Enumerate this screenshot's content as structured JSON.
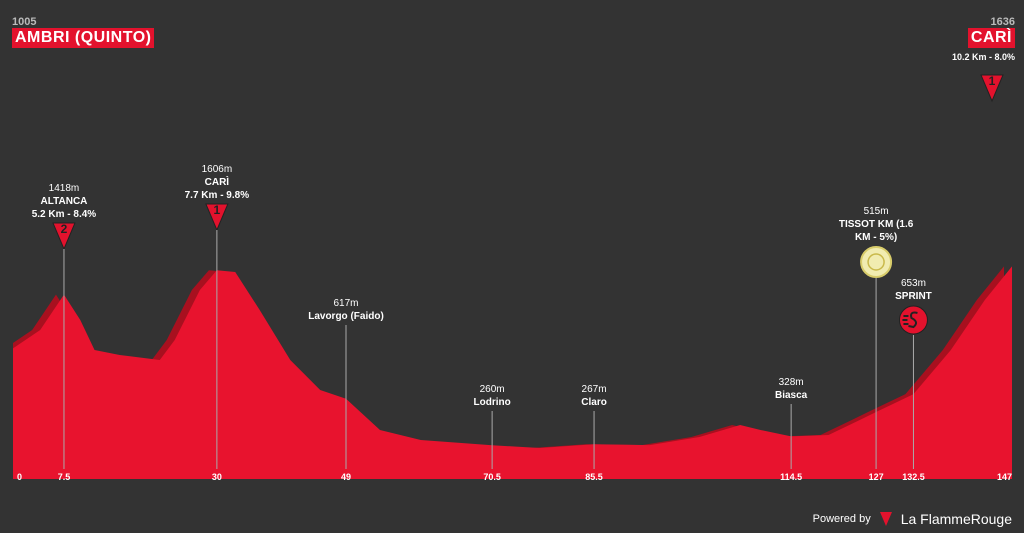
{
  "chart_data": {
    "type": "area",
    "start": {
      "elevation": 1005,
      "name": "AMBRI (QUINTO)"
    },
    "finish": {
      "elevation": 1636,
      "name": "CARÌ",
      "detail": "10.2 Km - 8.0%",
      "category": "1"
    },
    "x": [
      0,
      4,
      7.5,
      9.9,
      12,
      15.7,
      21.6,
      23.8,
      27.5,
      30,
      32.7,
      36.3,
      40.8,
      45.2,
      49,
      54,
      60,
      70.5,
      77.5,
      85.5,
      93.7,
      101,
      107,
      110,
      114.5,
      120,
      124.6,
      127,
      132.5,
      138,
      143,
      147
    ],
    "values": [
      1005,
      1146,
      1418,
      1223,
      992,
      954,
      915,
      1069,
      1454,
      1606,
      1592,
      1300,
      915,
      685,
      617,
      377,
      300,
      260,
      238,
      267,
      261,
      323,
      415,
      377,
      328,
      338,
      454,
      515,
      653,
      992,
      1377,
      1636
    ],
    "xlim": [
      0,
      147
    ],
    "xticks": [
      0,
      7.5,
      30,
      49,
      70.5,
      85.5,
      114.5,
      127,
      132.5,
      147
    ],
    "ylim": [
      0,
      1800
    ],
    "color": "#e8132e",
    "shade_color": "#a8101f",
    "annotations": [
      {
        "x": 7.5,
        "value": 1418,
        "label": "1418m",
        "name": "ALTANCA",
        "detail": "5.2 Km - 8.4%",
        "category": "2"
      },
      {
        "x": 30,
        "value": 1606,
        "label": "1606m",
        "name": "CARÌ",
        "detail": "7.7 Km - 9.8%",
        "category": "1"
      },
      {
        "x": 49,
        "value": 617,
        "label": "617m",
        "name": "Lavorgo (Faido)"
      },
      {
        "x": 70.5,
        "value": 260,
        "label": "260m",
        "name": "Lodrino"
      },
      {
        "x": 85.5,
        "value": 267,
        "label": "267m",
        "name": "Claro"
      },
      {
        "x": 114.5,
        "value": 328,
        "label": "328m",
        "name": "Biasca"
      },
      {
        "x": 127,
        "value": 515,
        "label": "515m",
        "name": "TISSOT KM (1.6 KM - 5%)"
      },
      {
        "x": 132.5,
        "value": 653,
        "label": "653m",
        "name": "SPRINT"
      }
    ]
  },
  "footer": {
    "powered": "Powered by",
    "brand": "La FlammeRouge"
  }
}
